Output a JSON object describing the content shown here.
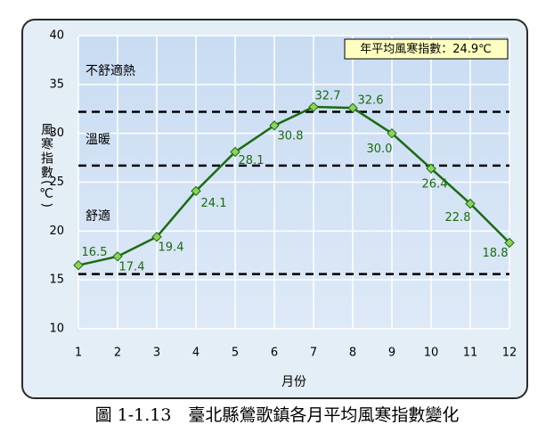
{
  "chart_data": {
    "type": "line",
    "title": "圖 1-1.13　臺北縣鶯歌鎮各月平均風寒指數變化",
    "x_label": "月份",
    "y_label": "風寒指數(℃)",
    "x": [
      1,
      2,
      3,
      4,
      5,
      6,
      7,
      8,
      9,
      10,
      11,
      12
    ],
    "series": [
      {
        "name": "風寒指數",
        "color": "#1a6b10",
        "values": [
          16.5,
          17.4,
          19.4,
          24.1,
          28.1,
          30.8,
          32.7,
          32.6,
          30.0,
          26.4,
          22.8,
          18.8
        ],
        "value_labels": [
          "16.5",
          "17.4",
          "19.4",
          "24.1",
          "28.1",
          "30.8",
          "32.7",
          "32.6",
          "30.0",
          "26.4",
          "22.8",
          "18.8"
        ]
      }
    ],
    "xlim": [
      1,
      12
    ],
    "xticks": [
      1,
      2,
      3,
      4,
      5,
      6,
      7,
      8,
      9,
      10,
      11,
      12
    ],
    "ylim": [
      10,
      40
    ],
    "yticks": [
      10,
      15,
      20,
      25,
      30,
      35,
      40
    ],
    "grid": true,
    "thresholds": [
      15.6,
      26.7,
      32.2
    ],
    "zone_labels": [
      "不舒適熱",
      "溫暖",
      "舒適"
    ],
    "annotation": "年平均風寒指數：24.9℃"
  }
}
